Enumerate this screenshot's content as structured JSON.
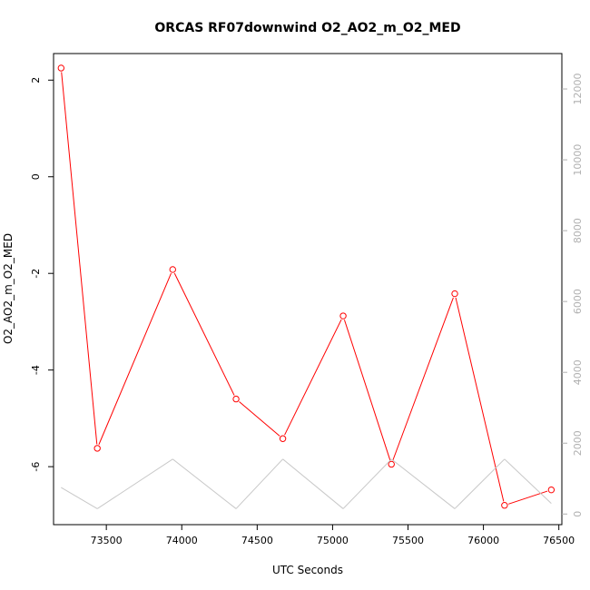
{
  "chart_data": {
    "type": "line",
    "title": "ORCAS RF07downwind O2_AO2_m_O2_MED",
    "xlabel": "UTC Seconds",
    "ylabel": "O2_AO2_m_O2_MED",
    "xlim": [
      73150,
      76520
    ],
    "ylim": [
      -7.2,
      2.55
    ],
    "y2lim": [
      -300,
      13000
    ],
    "x_ticks": [
      73500,
      74000,
      74500,
      75000,
      75500,
      76000,
      76500
    ],
    "y_ticks": [
      2,
      0,
      -2,
      -4,
      -6
    ],
    "y2_ticks": [
      0,
      2000,
      4000,
      6000,
      8000,
      10000,
      12000
    ],
    "series": [
      {
        "color": "#ff0000",
        "markers": "open-circle",
        "axis": "left",
        "x": [
          73200,
          73440,
          73940,
          74360,
          74670,
          75070,
          75390,
          75810,
          76140,
          76450
        ],
        "y": [
          2.25,
          -5.62,
          -1.92,
          -4.6,
          -5.42,
          -2.88,
          -5.95,
          -2.42,
          -6.8,
          -6.48
        ]
      },
      {
        "color": "#c8c8c8",
        "markers": "none",
        "axis": "right",
        "x": [
          73200,
          73440,
          73940,
          74360,
          74670,
          75070,
          75390,
          75810,
          76140,
          76450
        ],
        "y": [
          750,
          150,
          1550,
          150,
          1550,
          150,
          1550,
          150,
          1550,
          300
        ]
      }
    ]
  }
}
